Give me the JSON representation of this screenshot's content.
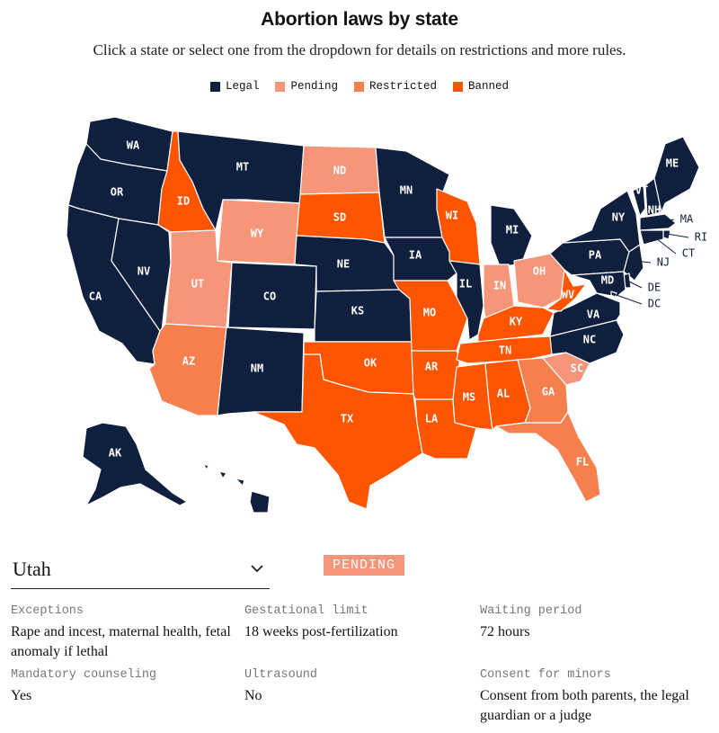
{
  "header": {
    "title": "Abortion laws by state",
    "subtitle": "Click a state or select one from the dropdown for details on restrictions and more rules."
  },
  "colors": {
    "legal": "#0f1f3d",
    "pending": "#f5957a",
    "restricted": "#f67f4e",
    "banned": "#ff5500"
  },
  "legend": [
    {
      "key": "legal",
      "label": "Legal"
    },
    {
      "key": "pending",
      "label": "Pending"
    },
    {
      "key": "restricted",
      "label": "Restricted"
    },
    {
      "key": "banned",
      "label": "Banned"
    }
  ],
  "map": {
    "states": [
      {
        "abbr": "WA",
        "status": "legal"
      },
      {
        "abbr": "OR",
        "status": "legal"
      },
      {
        "abbr": "CA",
        "status": "legal"
      },
      {
        "abbr": "NV",
        "status": "legal"
      },
      {
        "abbr": "ID",
        "status": "banned"
      },
      {
        "abbr": "MT",
        "status": "legal"
      },
      {
        "abbr": "WY",
        "status": "pending"
      },
      {
        "abbr": "UT",
        "status": "pending"
      },
      {
        "abbr": "AZ",
        "status": "restricted"
      },
      {
        "abbr": "CO",
        "status": "legal"
      },
      {
        "abbr": "NM",
        "status": "legal"
      },
      {
        "abbr": "ND",
        "status": "pending"
      },
      {
        "abbr": "SD",
        "status": "banned"
      },
      {
        "abbr": "NE",
        "status": "legal"
      },
      {
        "abbr": "KS",
        "status": "legal"
      },
      {
        "abbr": "OK",
        "status": "banned"
      },
      {
        "abbr": "TX",
        "status": "banned"
      },
      {
        "abbr": "MN",
        "status": "legal"
      },
      {
        "abbr": "IA",
        "status": "legal"
      },
      {
        "abbr": "MO",
        "status": "banned"
      },
      {
        "abbr": "AR",
        "status": "banned"
      },
      {
        "abbr": "LA",
        "status": "banned"
      },
      {
        "abbr": "WI",
        "status": "banned"
      },
      {
        "abbr": "IL",
        "status": "legal"
      },
      {
        "abbr": "MI",
        "status": "legal"
      },
      {
        "abbr": "IN",
        "status": "pending"
      },
      {
        "abbr": "OH",
        "status": "pending"
      },
      {
        "abbr": "KY",
        "status": "banned"
      },
      {
        "abbr": "TN",
        "status": "banned"
      },
      {
        "abbr": "MS",
        "status": "banned"
      },
      {
        "abbr": "AL",
        "status": "banned"
      },
      {
        "abbr": "GA",
        "status": "restricted"
      },
      {
        "abbr": "FL",
        "status": "restricted"
      },
      {
        "abbr": "SC",
        "status": "pending"
      },
      {
        "abbr": "NC",
        "status": "legal"
      },
      {
        "abbr": "VA",
        "status": "legal"
      },
      {
        "abbr": "WV",
        "status": "banned"
      },
      {
        "abbr": "PA",
        "status": "legal"
      },
      {
        "abbr": "NY",
        "status": "legal"
      },
      {
        "abbr": "VT",
        "status": "legal"
      },
      {
        "abbr": "NH",
        "status": "legal"
      },
      {
        "abbr": "ME",
        "status": "legal"
      },
      {
        "abbr": "MA",
        "status": "legal"
      },
      {
        "abbr": "RI",
        "status": "legal"
      },
      {
        "abbr": "CT",
        "status": "legal"
      },
      {
        "abbr": "NJ",
        "status": "legal"
      },
      {
        "abbr": "DE",
        "status": "legal"
      },
      {
        "abbr": "MD",
        "status": "legal"
      },
      {
        "abbr": "DC",
        "status": "legal"
      },
      {
        "abbr": "AK",
        "status": "legal"
      },
      {
        "abbr": "HI",
        "status": "legal"
      }
    ]
  },
  "selector": {
    "selected": "Utah",
    "status_label": "PENDING",
    "status_key": "pending"
  },
  "details": [
    {
      "label": "Exceptions",
      "value": "Rape and incest, maternal health, fetal anomaly if lethal"
    },
    {
      "label": "Gestational limit",
      "value": "18 weeks post-fertilization"
    },
    {
      "label": "Waiting period",
      "value": "72 hours"
    },
    {
      "label": "Mandatory counseling",
      "value": "Yes"
    },
    {
      "label": "Ultrasound",
      "value": "No"
    },
    {
      "label": "Consent for minors",
      "value": "Consent from both parents, the legal guardian or a judge"
    }
  ]
}
